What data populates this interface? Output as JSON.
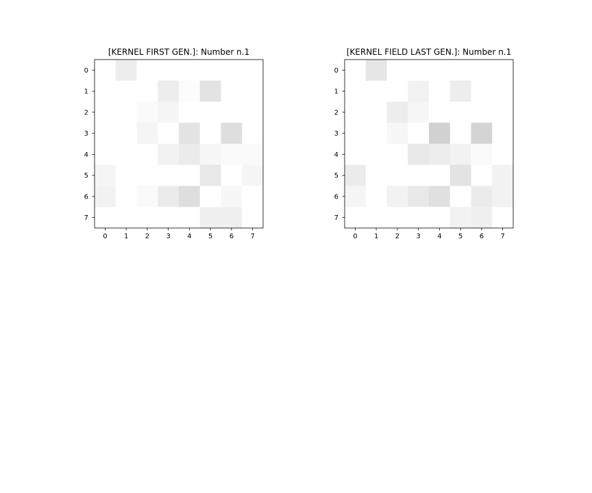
{
  "chart_data": [
    {
      "type": "heatmap",
      "title": "[KERNEL FIRST GEN.]: Number n.1",
      "x_ticks": [
        "0",
        "1",
        "2",
        "3",
        "4",
        "5",
        "6",
        "7"
      ],
      "y_ticks": [
        "0",
        "1",
        "2",
        "3",
        "4",
        "5",
        "6",
        "7"
      ],
      "colormap": "greys",
      "grid": false,
      "values": [
        [
          0.0,
          0.07,
          0.0,
          0.0,
          0.0,
          0.0,
          0.0,
          0.0
        ],
        [
          0.0,
          0.0,
          0.0,
          0.07,
          0.01,
          0.11,
          0.0,
          0.0
        ],
        [
          0.0,
          0.0,
          0.02,
          0.04,
          0.0,
          0.0,
          0.0,
          0.0
        ],
        [
          0.0,
          0.0,
          0.04,
          0.0,
          0.11,
          0.0,
          0.13,
          0.0
        ],
        [
          0.0,
          0.0,
          0.0,
          0.05,
          0.08,
          0.03,
          0.02,
          0.02
        ],
        [
          0.04,
          0.0,
          0.0,
          0.0,
          0.0,
          0.09,
          0.0,
          0.04
        ],
        [
          0.05,
          0.0,
          0.02,
          0.08,
          0.13,
          0.0,
          0.03,
          0.0
        ],
        [
          0.0,
          0.0,
          0.0,
          0.0,
          0.0,
          0.06,
          0.06,
          0.0
        ]
      ],
      "value_range": [
        0,
        1
      ]
    },
    {
      "type": "heatmap",
      "title": "[KERNEL FIELD LAST GEN.]: Number n.1",
      "x_ticks": [
        "0",
        "1",
        "2",
        "3",
        "4",
        "5",
        "6",
        "7"
      ],
      "y_ticks": [
        "0",
        "1",
        "2",
        "3",
        "4",
        "5",
        "6",
        "7"
      ],
      "colormap": "greys",
      "grid": false,
      "values": [
        [
          0.0,
          0.1,
          0.0,
          0.0,
          0.0,
          0.0,
          0.0,
          0.0
        ],
        [
          0.0,
          0.0,
          0.0,
          0.05,
          0.0,
          0.07,
          0.0,
          0.0
        ],
        [
          0.0,
          0.0,
          0.07,
          0.03,
          0.0,
          0.0,
          0.0,
          0.0
        ],
        [
          0.0,
          0.0,
          0.03,
          0.0,
          0.18,
          0.0,
          0.17,
          0.0
        ],
        [
          0.0,
          0.0,
          0.0,
          0.09,
          0.07,
          0.05,
          0.02,
          0.0
        ],
        [
          0.08,
          0.0,
          0.0,
          0.0,
          0.0,
          0.11,
          0.0,
          0.05
        ],
        [
          0.04,
          0.0,
          0.05,
          0.09,
          0.12,
          0.0,
          0.08,
          0.05
        ],
        [
          0.0,
          0.0,
          0.0,
          0.0,
          0.0,
          0.05,
          0.06,
          0.0
        ]
      ],
      "value_range": [
        0,
        1
      ]
    }
  ]
}
